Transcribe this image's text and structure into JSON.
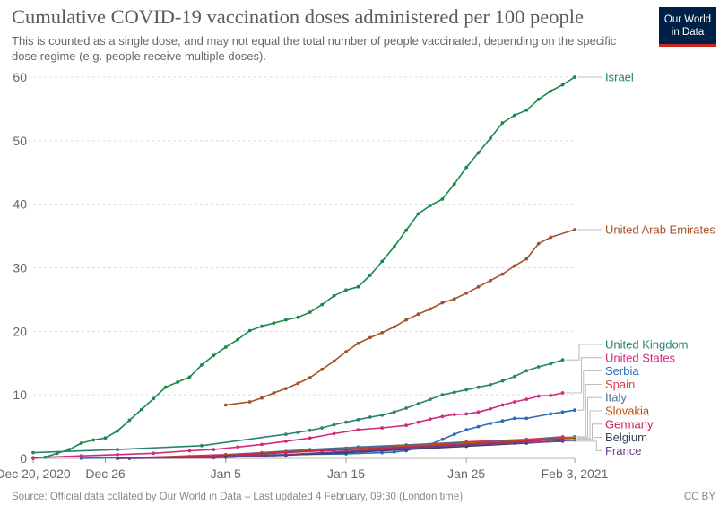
{
  "header": {
    "title": "Cumulative COVID-19 vaccination doses administered per 100 people",
    "subtitle": "This is counted as a single dose, and may not equal the total number of people vaccinated, depending on the specific dose regime (e.g. people receive multiple doses)."
  },
  "logo": {
    "line1": "Our World",
    "line2": "in Data"
  },
  "footer": {
    "source": "Source: Official data collated by Our World in Data – Last updated 4 February, 09:30 (London time)",
    "license": "CC BY"
  },
  "chart_data": {
    "type": "line",
    "title": "Cumulative COVID-19 vaccination doses administered per 100 people",
    "x_type": "date",
    "x_ticks": [
      {
        "date": "2020-12-20",
        "label": "Dec 20, 2020"
      },
      {
        "date": "2020-12-26",
        "label": "Dec 26"
      },
      {
        "date": "2021-01-05",
        "label": "Jan 5"
      },
      {
        "date": "2021-01-15",
        "label": "Jan 15"
      },
      {
        "date": "2021-01-25",
        "label": "Jan 25"
      },
      {
        "date": "2021-02-03",
        "label": "Feb 3, 2021"
      }
    ],
    "xlim": [
      "2020-12-20",
      "2021-02-03"
    ],
    "ylim": [
      0,
      60
    ],
    "y_ticks": [
      0,
      10,
      20,
      30,
      40,
      50,
      60
    ],
    "grid": "horizontal-dashed",
    "legend": "right-end-labels",
    "series": [
      {
        "name": "Israel",
        "color": "#18894b",
        "points": [
          [
            "2020-12-20",
            0.0
          ],
          [
            "2020-12-21",
            0.2
          ],
          [
            "2020-12-22",
            0.8
          ],
          [
            "2020-12-23",
            1.4
          ],
          [
            "2020-12-24",
            2.4
          ],
          [
            "2020-12-25",
            2.9
          ],
          [
            "2020-12-26",
            3.2
          ],
          [
            "2020-12-27",
            4.3
          ],
          [
            "2020-12-28",
            6.0
          ],
          [
            "2020-12-29",
            7.7
          ],
          [
            "2020-12-30",
            9.4
          ],
          [
            "2020-12-31",
            11.2
          ],
          [
            "2021-01-01",
            12.0
          ],
          [
            "2021-01-02",
            12.8
          ],
          [
            "2021-01-03",
            14.7
          ],
          [
            "2021-01-04",
            16.2
          ],
          [
            "2021-01-05",
            17.5
          ],
          [
            "2021-01-06",
            18.7
          ],
          [
            "2021-01-07",
            20.1
          ],
          [
            "2021-01-08",
            20.8
          ],
          [
            "2021-01-09",
            21.3
          ],
          [
            "2021-01-10",
            21.8
          ],
          [
            "2021-01-11",
            22.2
          ],
          [
            "2021-01-12",
            23.0
          ],
          [
            "2021-01-13",
            24.2
          ],
          [
            "2021-01-14",
            25.6
          ],
          [
            "2021-01-15",
            26.5
          ],
          [
            "2021-01-16",
            27.0
          ],
          [
            "2021-01-17",
            28.8
          ],
          [
            "2021-01-18",
            31.0
          ],
          [
            "2021-01-19",
            33.3
          ],
          [
            "2021-01-20",
            35.9
          ],
          [
            "2021-01-21",
            38.5
          ],
          [
            "2021-01-22",
            39.8
          ],
          [
            "2021-01-23",
            40.8
          ],
          [
            "2021-01-24",
            43.2
          ],
          [
            "2021-01-25",
            45.8
          ],
          [
            "2021-01-26",
            48.1
          ],
          [
            "2021-01-27",
            50.4
          ],
          [
            "2021-01-28",
            52.8
          ],
          [
            "2021-01-29",
            54.0
          ],
          [
            "2021-01-30",
            54.8
          ],
          [
            "2021-01-31",
            56.5
          ],
          [
            "2021-02-01",
            57.8
          ],
          [
            "2021-02-02",
            58.8
          ],
          [
            "2021-02-03",
            60.0
          ]
        ]
      },
      {
        "name": "United Arab Emirates",
        "color": "#a2522a",
        "points": [
          [
            "2021-01-05",
            8.4
          ],
          [
            "2021-01-07",
            8.9
          ],
          [
            "2021-01-08",
            9.5
          ],
          [
            "2021-01-09",
            10.3
          ],
          [
            "2021-01-10",
            11.0
          ],
          [
            "2021-01-11",
            11.8
          ],
          [
            "2021-01-12",
            12.7
          ],
          [
            "2021-01-13",
            14.0
          ],
          [
            "2021-01-14",
            15.3
          ],
          [
            "2021-01-15",
            16.8
          ],
          [
            "2021-01-16",
            18.1
          ],
          [
            "2021-01-17",
            19.0
          ],
          [
            "2021-01-18",
            19.8
          ],
          [
            "2021-01-19",
            20.7
          ],
          [
            "2021-01-20",
            21.8
          ],
          [
            "2021-01-21",
            22.7
          ],
          [
            "2021-01-22",
            23.5
          ],
          [
            "2021-01-23",
            24.5
          ],
          [
            "2021-01-24",
            25.1
          ],
          [
            "2021-01-25",
            26.0
          ],
          [
            "2021-01-26",
            27.0
          ],
          [
            "2021-01-27",
            28.0
          ],
          [
            "2021-01-28",
            29.0
          ],
          [
            "2021-01-29",
            30.3
          ],
          [
            "2021-01-30",
            31.4
          ],
          [
            "2021-01-31",
            33.8
          ],
          [
            "2021-02-01",
            34.8
          ],
          [
            "2021-02-03",
            36.0
          ]
        ]
      },
      {
        "name": "United Kingdom",
        "color": "#2a8273",
        "points": [
          [
            "2020-12-20",
            0.9
          ],
          [
            "2020-12-27",
            1.4
          ],
          [
            "2021-01-03",
            2.0
          ],
          [
            "2021-01-10",
            3.8
          ],
          [
            "2021-01-11",
            4.1
          ],
          [
            "2021-01-12",
            4.4
          ],
          [
            "2021-01-13",
            4.8
          ],
          [
            "2021-01-14",
            5.3
          ],
          [
            "2021-01-15",
            5.7
          ],
          [
            "2021-01-16",
            6.1
          ],
          [
            "2021-01-17",
            6.5
          ],
          [
            "2021-01-18",
            6.8
          ],
          [
            "2021-01-19",
            7.3
          ],
          [
            "2021-01-20",
            7.9
          ],
          [
            "2021-01-21",
            8.6
          ],
          [
            "2021-01-22",
            9.3
          ],
          [
            "2021-01-23",
            10.0
          ],
          [
            "2021-01-24",
            10.4
          ],
          [
            "2021-01-25",
            10.8
          ],
          [
            "2021-01-26",
            11.2
          ],
          [
            "2021-01-27",
            11.6
          ],
          [
            "2021-01-28",
            12.2
          ],
          [
            "2021-01-29",
            12.9
          ],
          [
            "2021-01-30",
            13.8
          ],
          [
            "2021-01-31",
            14.4
          ],
          [
            "2021-02-01",
            14.9
          ],
          [
            "2021-02-02",
            15.5
          ]
        ]
      },
      {
        "name": "United States",
        "color": "#d4287e",
        "points": [
          [
            "2020-12-20",
            0.1
          ],
          [
            "2020-12-24",
            0.4
          ],
          [
            "2020-12-27",
            0.6
          ],
          [
            "2020-12-30",
            0.8
          ],
          [
            "2021-01-02",
            1.2
          ],
          [
            "2021-01-04",
            1.4
          ],
          [
            "2021-01-06",
            1.8
          ],
          [
            "2021-01-08",
            2.2
          ],
          [
            "2021-01-10",
            2.7
          ],
          [
            "2021-01-12",
            3.2
          ],
          [
            "2021-01-14",
            3.9
          ],
          [
            "2021-01-16",
            4.5
          ],
          [
            "2021-01-18",
            4.8
          ],
          [
            "2021-01-20",
            5.2
          ],
          [
            "2021-01-21",
            5.7
          ],
          [
            "2021-01-22",
            6.2
          ],
          [
            "2021-01-23",
            6.6
          ],
          [
            "2021-01-24",
            6.9
          ],
          [
            "2021-01-25",
            7.0
          ],
          [
            "2021-01-26",
            7.3
          ],
          [
            "2021-01-27",
            7.8
          ],
          [
            "2021-01-28",
            8.4
          ],
          [
            "2021-01-29",
            8.9
          ],
          [
            "2021-01-30",
            9.3
          ],
          [
            "2021-01-31",
            9.8
          ],
          [
            "2021-02-01",
            9.9
          ],
          [
            "2021-02-02",
            10.3
          ]
        ]
      },
      {
        "name": "Serbia",
        "color": "#286bbb",
        "points": [
          [
            "2020-12-24",
            0.0
          ],
          [
            "2021-01-02",
            0.3
          ],
          [
            "2021-01-10",
            0.6
          ],
          [
            "2021-01-15",
            0.7
          ],
          [
            "2021-01-18",
            0.9
          ],
          [
            "2021-01-19",
            1.0
          ],
          [
            "2021-01-20",
            1.2
          ],
          [
            "2021-01-21",
            1.8
          ],
          [
            "2021-01-22",
            2.2
          ],
          [
            "2021-01-23",
            3.0
          ],
          [
            "2021-01-24",
            3.8
          ],
          [
            "2021-01-25",
            4.5
          ],
          [
            "2021-01-26",
            5.0
          ],
          [
            "2021-01-27",
            5.5
          ],
          [
            "2021-01-28",
            5.9
          ],
          [
            "2021-01-29",
            6.3
          ],
          [
            "2021-01-30",
            6.3
          ],
          [
            "2021-02-01",
            7.0
          ],
          [
            "2021-02-02",
            7.3
          ],
          [
            "2021-02-03",
            7.6
          ]
        ]
      },
      {
        "name": "Spain",
        "color": "#dd3842",
        "points": [
          [
            "2020-12-27",
            0.0
          ],
          [
            "2021-01-05",
            0.6
          ],
          [
            "2021-01-10",
            1.1
          ],
          [
            "2021-01-15",
            1.6
          ],
          [
            "2021-01-20",
            2.1
          ],
          [
            "2021-01-25",
            2.6
          ],
          [
            "2021-01-30",
            3.0
          ],
          [
            "2021-02-02",
            3.4
          ]
        ]
      },
      {
        "name": "Italy",
        "color": "#4c6a9c",
        "points": [
          [
            "2020-12-27",
            0.0
          ],
          [
            "2021-01-04",
            0.4
          ],
          [
            "2021-01-08",
            0.9
          ],
          [
            "2021-01-12",
            1.4
          ],
          [
            "2021-01-16",
            1.8
          ],
          [
            "2021-01-20",
            2.1
          ],
          [
            "2021-01-25",
            2.5
          ],
          [
            "2021-01-30",
            2.9
          ],
          [
            "2021-02-03",
            3.4
          ]
        ]
      },
      {
        "name": "Slovakia",
        "color": "#bc4e05",
        "points": [
          [
            "2020-12-27",
            0.0
          ],
          [
            "2021-01-05",
            0.5
          ],
          [
            "2021-01-10",
            1.0
          ],
          [
            "2021-01-15",
            1.4
          ],
          [
            "2021-01-20",
            1.9
          ],
          [
            "2021-01-25",
            2.4
          ],
          [
            "2021-01-30",
            2.8
          ],
          [
            "2021-02-03",
            3.2
          ]
        ]
      },
      {
        "name": "Germany",
        "color": "#c8234f",
        "points": [
          [
            "2020-12-27",
            0.0
          ],
          [
            "2021-01-03",
            0.3
          ],
          [
            "2021-01-08",
            0.7
          ],
          [
            "2021-01-13",
            1.2
          ],
          [
            "2021-01-18",
            1.6
          ],
          [
            "2021-01-23",
            2.0
          ],
          [
            "2021-01-28",
            2.5
          ],
          [
            "2021-02-02",
            3.0
          ]
        ]
      },
      {
        "name": "Belgium",
        "color": "#38425d",
        "points": [
          [
            "2020-12-28",
            0.0
          ],
          [
            "2021-01-05",
            0.2
          ],
          [
            "2021-01-10",
            0.5
          ],
          [
            "2021-01-15",
            0.9
          ],
          [
            "2021-01-20",
            1.4
          ],
          [
            "2021-01-25",
            1.9
          ],
          [
            "2021-01-30",
            2.4
          ],
          [
            "2021-02-03",
            2.9
          ]
        ]
      },
      {
        "name": "France",
        "color": "#6d3e91",
        "points": [
          [
            "2020-12-27",
            0.0
          ],
          [
            "2021-01-04",
            0.1
          ],
          [
            "2021-01-09",
            0.5
          ],
          [
            "2021-01-14",
            1.0
          ],
          [
            "2021-01-19",
            1.5
          ],
          [
            "2021-01-24",
            2.0
          ],
          [
            "2021-01-29",
            2.4
          ],
          [
            "2021-02-02",
            2.7
          ]
        ]
      }
    ]
  }
}
